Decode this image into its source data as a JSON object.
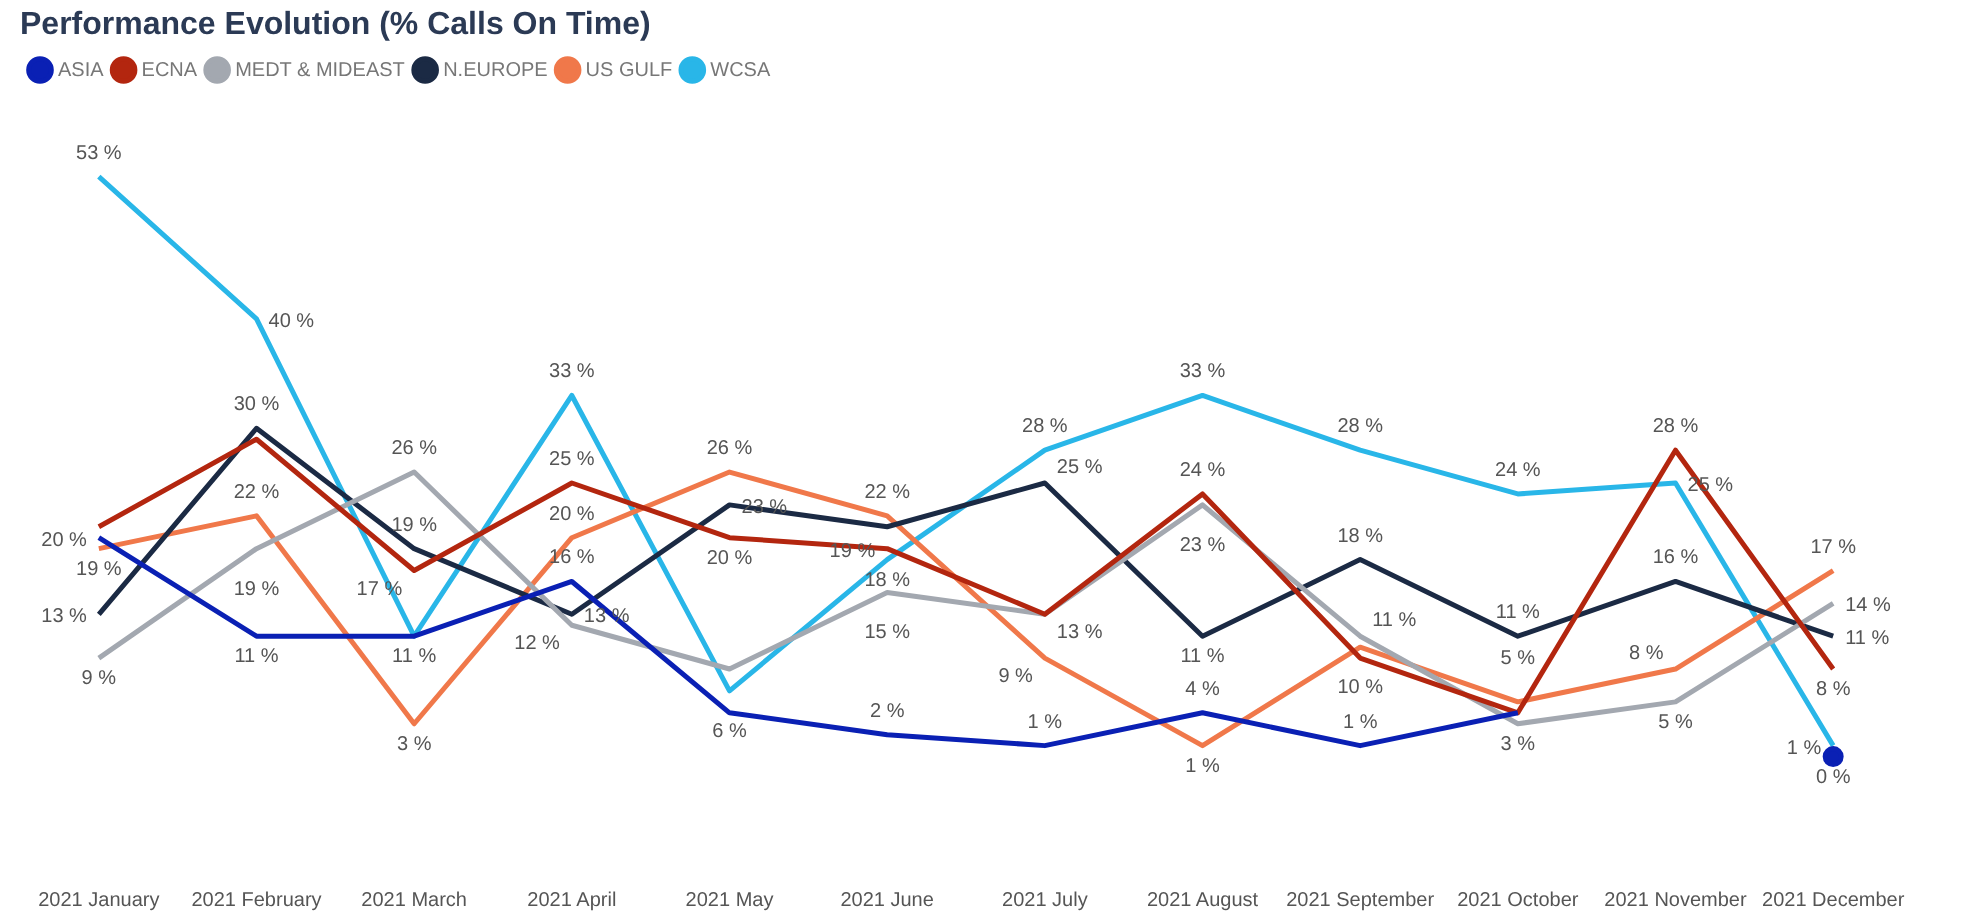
{
  "chart_data": {
    "type": "line",
    "title": "Performance Evolution (% Calls On Time)",
    "categories": [
      "2021 January",
      "2021 February",
      "2021 March",
      "2021 April",
      "2021 May",
      "2021 June",
      "2021 July",
      "2021 August",
      "2021 September",
      "2021 October",
      "2021 November",
      "2021 December"
    ],
    "series": [
      {
        "name": "ASIA",
        "color": "#0a20b4",
        "values": [
          20,
          11,
          11,
          16,
          4,
          2,
          1,
          4,
          1,
          4,
          null,
          0
        ],
        "value_labels": [
          "20 %",
          "11 %",
          "11 %",
          "16 %",
          null,
          "2 %",
          "1 %",
          "4 %",
          "1 %",
          null,
          null,
          "0 %"
        ]
      },
      {
        "name": "ECNA",
        "color": "#b3260f",
        "values": [
          21,
          29,
          17,
          25,
          20,
          19,
          13,
          24,
          9,
          4,
          28,
          8
        ],
        "value_labels": [
          null,
          null,
          "17 %",
          "25 %",
          "20 %",
          "19 %",
          "13 %",
          "24 %",
          null,
          null,
          "28 %",
          "8 %"
        ]
      },
      {
        "name": "MEDT & MIDEAST",
        "color": "#a3a8b0",
        "values": [
          9,
          19,
          26,
          12,
          8,
          15,
          13,
          23,
          11,
          3,
          5,
          14
        ],
        "value_labels": [
          "9 %",
          "19 %",
          "26 %",
          "12 %",
          null,
          "15 %",
          null,
          "23 %",
          "11 %",
          "3 %",
          "5 %",
          "14 %"
        ]
      },
      {
        "name": "N.EUROPE",
        "color": "#1b2a44",
        "values": [
          13,
          30,
          19,
          13,
          23,
          21,
          25,
          11,
          18,
          11,
          16,
          11
        ],
        "value_labels": [
          "13 %",
          "30 %",
          "19 %",
          "13 %",
          "23 %",
          null,
          "25 %",
          "11 %",
          "18 %",
          "11 %",
          "16 %",
          "11 %"
        ]
      },
      {
        "name": "US GULF",
        "color": "#f0784a",
        "values": [
          19,
          22,
          3,
          20,
          26,
          22,
          9,
          1,
          10,
          5,
          8,
          17
        ],
        "value_labels": [
          "19 %",
          "22 %",
          "3 %",
          "20 %",
          "26 %",
          "22 %",
          "9 %",
          "1 %",
          "10 %",
          "5 %",
          "8 %",
          "17 %"
        ]
      },
      {
        "name": "WCSA",
        "color": "#29b6e8",
        "values": [
          53,
          40,
          11,
          33,
          6,
          18,
          28,
          33,
          28,
          24,
          25,
          1
        ],
        "value_labels": [
          "53 %",
          "40 %",
          null,
          "33 %",
          "6 %",
          "18 %",
          "28 %",
          "33 %",
          "28 %",
          "24 %",
          "25 %",
          "1 %"
        ]
      }
    ],
    "legend": "top left",
    "grid": false,
    "marker": "none",
    "tick_labels": "x"
  }
}
